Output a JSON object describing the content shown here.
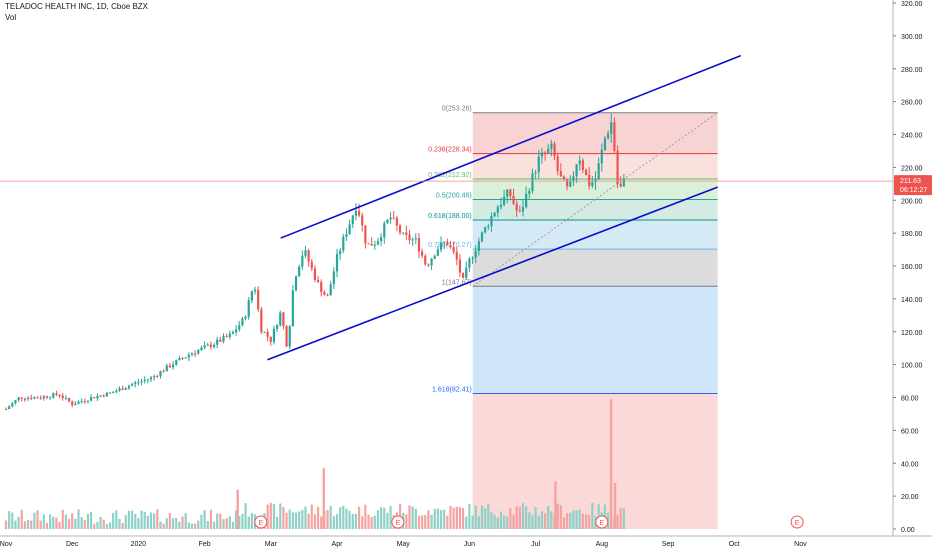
{
  "header": {
    "symbol_line": "TELADOC HEALTH INC, 1D, Cboe BZX",
    "volume_label": "Vol"
  },
  "chart_data": {
    "type": "candlestick",
    "title": "TELADOC HEALTH INC, 1D, Cboe BZX",
    "ylim": [
      0,
      320
    ],
    "y_ticks": [
      "320.00",
      "300.00",
      "280.00",
      "260.00",
      "240.00",
      "220.00",
      "200.00",
      "180.00",
      "160.00",
      "140.00",
      "120.00",
      "100.00",
      "80.00",
      "60.00",
      "40.00",
      "20.00",
      "0.00"
    ],
    "x_ticks": [
      {
        "label": "Nov",
        "month": 0
      },
      {
        "label": "Dec",
        "month": 1
      },
      {
        "label": "2020",
        "month": 2
      },
      {
        "label": "Feb",
        "month": 3
      },
      {
        "label": "Mar",
        "month": 4
      },
      {
        "label": "Apr",
        "month": 5
      },
      {
        "label": "May",
        "month": 6
      },
      {
        "label": "Jun",
        "month": 7
      },
      {
        "label": "Jul",
        "month": 8
      },
      {
        "label": "Aug",
        "month": 9
      },
      {
        "label": "Sep",
        "month": 10
      },
      {
        "label": "Oct",
        "month": 11
      },
      {
        "label": "Nov",
        "month": 12
      }
    ],
    "last_price": "211.63",
    "countdown": "06:12:27",
    "price_anchors": [
      [
        0,
        73
      ],
      [
        0.2,
        80
      ],
      [
        0.5,
        80
      ],
      [
        0.8,
        82
      ],
      [
        1.0,
        76
      ],
      [
        1.3,
        80
      ],
      [
        1.6,
        83
      ],
      [
        1.9,
        88
      ],
      [
        2.2,
        92
      ],
      [
        2.5,
        100
      ],
      [
        2.8,
        107
      ],
      [
        3.1,
        112
      ],
      [
        3.4,
        118
      ],
      [
        3.6,
        128
      ],
      [
        3.75,
        150
      ],
      [
        3.85,
        122
      ],
      [
        4.0,
        115
      ],
      [
        4.15,
        132
      ],
      [
        4.25,
        110
      ],
      [
        4.35,
        152
      ],
      [
        4.5,
        170
      ],
      [
        4.7,
        150
      ],
      [
        4.85,
        140
      ],
      [
        5.0,
        165
      ],
      [
        5.15,
        182
      ],
      [
        5.3,
        198
      ],
      [
        5.45,
        172
      ],
      [
        5.6,
        175
      ],
      [
        5.8,
        190
      ],
      [
        6.0,
        178
      ],
      [
        6.2,
        175
      ],
      [
        6.35,
        160
      ],
      [
        6.5,
        170
      ],
      [
        6.65,
        175
      ],
      [
        6.8,
        165
      ],
      [
        6.9,
        150
      ],
      [
        7.0,
        163
      ],
      [
        7.2,
        180
      ],
      [
        7.4,
        195
      ],
      [
        7.6,
        205
      ],
      [
        7.75,
        190
      ],
      [
        7.9,
        208
      ],
      [
        8.05,
        225
      ],
      [
        8.25,
        232
      ],
      [
        8.35,
        215
      ],
      [
        8.5,
        205
      ],
      [
        8.65,
        228
      ],
      [
        8.8,
        210
      ],
      [
        8.9,
        212
      ],
      [
        9.05,
        238
      ],
      [
        9.15,
        248
      ],
      [
        9.25,
        205
      ],
      [
        9.35,
        212
      ]
    ],
    "volume_spikes": [
      {
        "x": 9.14,
        "value": 79
      },
      {
        "x": 9.2,
        "value": 28
      },
      {
        "x": 4.8,
        "value": 37
      },
      {
        "x": 3.5,
        "value": 24
      },
      {
        "x": 8.3,
        "value": 29
      }
    ],
    "channel": {
      "upper": [
        [
          4.15,
          177
        ],
        [
          11.1,
          288
        ]
      ],
      "lower": [
        [
          3.95,
          103
        ],
        [
          10.75,
          208
        ]
      ]
    },
    "fibonacci": {
      "x_start": 7.05,
      "x_end": 10.75,
      "diagonal": [
        [
          7.05,
          147.67
        ],
        [
          10.75,
          253.26
        ]
      ],
      "levels": [
        {
          "ratio": "0",
          "value": 253.26,
          "label": "0(253.26)",
          "color": "#787b86",
          "fill": "#f8d3d3"
        },
        {
          "ratio": "0.236",
          "value": 228.34,
          "label": "0.236(228.34)",
          "color": "#e53935",
          "fill": "#fbe1de"
        },
        {
          "ratio": "0.382",
          "value": 212.92,
          "label": "0.382(212.92)",
          "color": "#66bb6a",
          "fill": "#dcefd9"
        },
        {
          "ratio": "0.5",
          "value": 200.46,
          "label": "0.5(200.46)",
          "color": "#26a69a",
          "fill": "#d3ebe3"
        },
        {
          "ratio": "0.618",
          "value": 188.0,
          "label": "0.618(188.00)",
          "color": "#009688",
          "fill": "#d6eaf5"
        },
        {
          "ratio": "0.786",
          "value": 170.27,
          "label": "0.786(170.27)",
          "color": "#64b5f6",
          "fill": "#dcdcdc"
        },
        {
          "ratio": "1",
          "value": 147.67,
          "label": "1(147.67)",
          "color": "#787b86",
          "fill": "#cfe5fa"
        },
        {
          "ratio": "1.618",
          "value": 82.41,
          "label": "1.618(82.41)",
          "color": "#2962ff",
          "fill": "#cfe5fa"
        }
      ]
    },
    "earnings_markers": [
      {
        "x": 3.85,
        "label": "E"
      },
      {
        "x": 5.92,
        "label": "E"
      },
      {
        "x": 9.0,
        "label": "E"
      },
      {
        "x": 11.95,
        "label": "E"
      }
    ],
    "colors": {
      "up": "#26a69a",
      "down": "#ef5350",
      "up_volume": "#8fd1c8",
      "down_volume": "#f5a3a1",
      "channel": "#0b0bd0",
      "last_price_line": "#f28b8b",
      "last_price_tag": "#ef5350",
      "axis_text": "#131722"
    }
  }
}
